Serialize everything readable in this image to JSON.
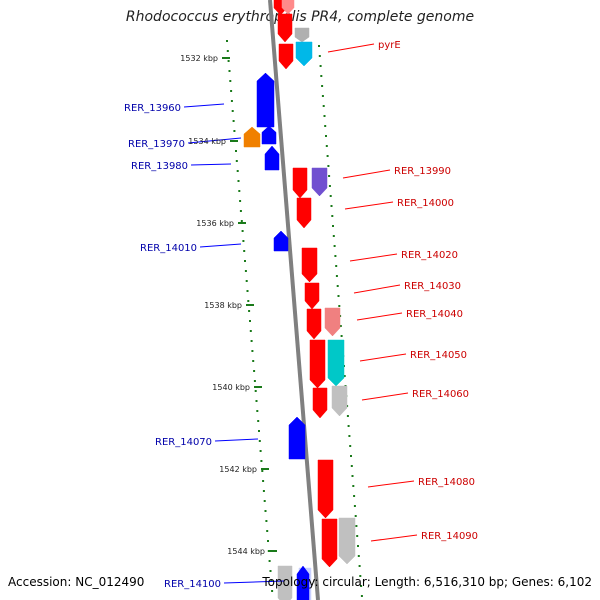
{
  "title": "Rhodococcus erythropolis PR4, complete genome",
  "footer": {
    "accession": "Accession: NC_012490",
    "topology": "Topology: circular; Length: 6,516,310 bp; Genes: 6,102"
  },
  "colors": {
    "forward_gene": "#ff0000",
    "reverse_gene": "#0000ff",
    "forward_label": "#cc0000",
    "reverse_label": "#0000aa",
    "backbone": "#808080",
    "tick": "#1a7a1a"
  },
  "scale_ticks": [
    "1532 kbp",
    "1534 kbp",
    "1536 kbp",
    "1538 kbp",
    "1540 kbp",
    "1542 kbp",
    "1544 kbp"
  ],
  "genes_forward": [
    "pyrE",
    "RER_13990",
    "RER_14000",
    "RER_14020",
    "RER_14030",
    "RER_14040",
    "RER_14050",
    "RER_14060",
    "RER_14080",
    "RER_14090"
  ],
  "genes_reverse": [
    "RER_13960",
    "RER_13970",
    "RER_13980",
    "RER_14010",
    "RER_14070",
    "RER_14100"
  ]
}
